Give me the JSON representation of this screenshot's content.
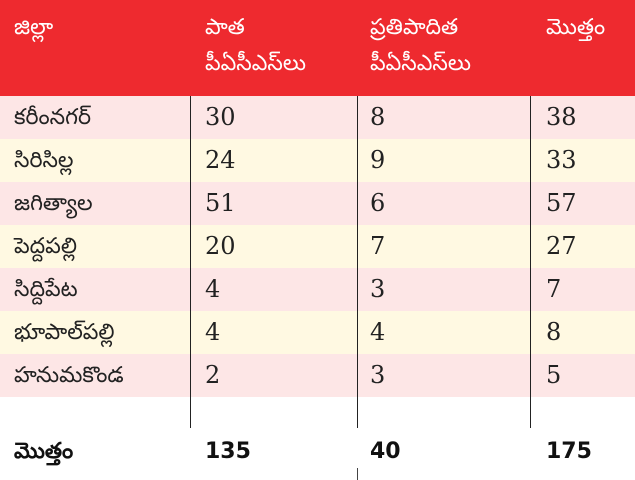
{
  "header": {
    "district": "జిల్లా",
    "old_line1": "పాత",
    "old_line2": "పీఏసీఎస్‌లు",
    "proposed_line1": "ప్రతిపాదిత",
    "proposed_line2": "పీఏసీఎస్‌లు",
    "total": "మొత్తం"
  },
  "rows": [
    {
      "district": "కరీంనగర్",
      "old": "30",
      "proposed": "8",
      "total": "38"
    },
    {
      "district": "సిరిసిల్ల",
      "old": "24",
      "proposed": "9",
      "total": "33"
    },
    {
      "district": "జగిత్యాల",
      "old": "51",
      "proposed": "6",
      "total": "57"
    },
    {
      "district": "పెద్దపల్లి",
      "old": "20",
      "proposed": "7",
      "total": "27"
    },
    {
      "district": "సిద్దిపేట",
      "old": "4",
      "proposed": "3",
      "total": "7"
    },
    {
      "district": "భూపాల్‌పల్లి",
      "old": "4",
      "proposed": "4",
      "total": "8"
    },
    {
      "district": "హనుమకొండ",
      "old": "2",
      "proposed": "3",
      "total": "5"
    }
  ],
  "totals": {
    "label": "మొత్తం",
    "old": "135",
    "proposed": "40",
    "total": "175"
  },
  "colors": {
    "header_bg": "#ee2a2f",
    "row_pink": "#fde6e6",
    "row_cream": "#fff9e2"
  }
}
